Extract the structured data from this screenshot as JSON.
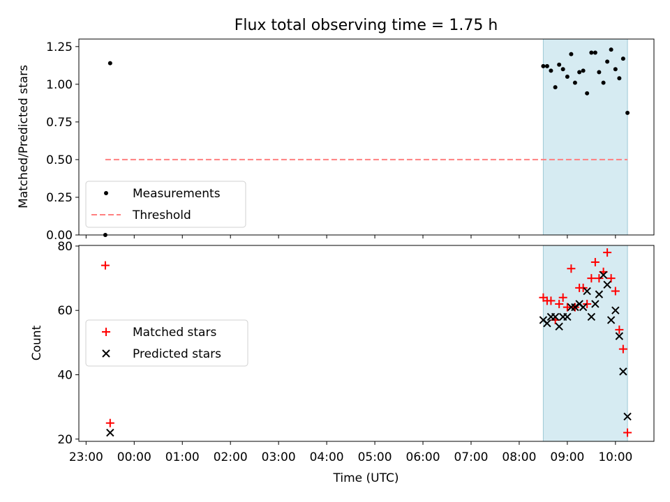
{
  "chart_data": [
    {
      "type": "scatter",
      "title": "Flux total observing time = 1.75 h",
      "xlabel": "",
      "ylabel": "Matched/Predicted stars",
      "xlim": [
        -0.15,
        11.8
      ],
      "ylim": [
        0,
        1.3
      ],
      "yticks": [
        0.0,
        0.25,
        0.5,
        0.75,
        1.0,
        1.25
      ],
      "ytick_labels": [
        "0.00",
        "0.25",
        "0.50",
        "0.75",
        "1.00",
        "1.25"
      ],
      "xticks": [
        0,
        1,
        2,
        3,
        4,
        5,
        6,
        7,
        8,
        9,
        10,
        11
      ],
      "shaded_region": [
        9.5,
        11.25
      ],
      "series": [
        {
          "name": "Measurements",
          "marker": "dot",
          "color": "#000000",
          "x": [
            0.4,
            0.5,
            9.5,
            9.58,
            9.66,
            9.75,
            9.83,
            9.91,
            10.0,
            10.08,
            10.16,
            10.25,
            10.33,
            10.41,
            10.5,
            10.58,
            10.66,
            10.75,
            10.83,
            10.91,
            11.0,
            11.08,
            11.16,
            11.25
          ],
          "y": [
            0.0,
            1.14,
            1.12,
            1.12,
            1.09,
            0.98,
            1.13,
            1.1,
            1.05,
            1.2,
            1.01,
            1.08,
            1.09,
            0.94,
            1.21,
            1.21,
            1.08,
            1.01,
            1.15,
            1.23,
            1.1,
            1.04,
            1.17,
            0.81
          ]
        },
        {
          "name": "Threshold",
          "style": "dashed",
          "color": "#ff7f7f",
          "x": [
            0.4,
            11.25
          ],
          "y": [
            0.5,
            0.5
          ]
        }
      ],
      "legend": "lower-left"
    },
    {
      "type": "scatter",
      "title": "",
      "xlabel": "Time (UTC)",
      "ylabel": "Count",
      "xlim": [
        -0.15,
        11.8
      ],
      "ylim": [
        19.3,
        80.2
      ],
      "yticks": [
        20,
        40,
        60,
        80
      ],
      "ytick_labels": [
        "20",
        "40",
        "60",
        "80"
      ],
      "xticks": [
        0,
        1,
        2,
        3,
        4,
        5,
        6,
        7,
        8,
        9,
        10,
        11
      ],
      "xtick_labels": [
        "23:00",
        "00:00",
        "01:00",
        "02:00",
        "03:00",
        "04:00",
        "05:00",
        "06:00",
        "07:00",
        "08:00",
        "09:00",
        "10:00"
      ],
      "shaded_region": [
        9.5,
        11.25
      ],
      "series": [
        {
          "name": "Matched stars",
          "marker": "plus",
          "color": "#ff0000",
          "x": [
            0.4,
            0.5,
            9.5,
            9.58,
            9.66,
            9.75,
            9.83,
            9.91,
            10.0,
            10.08,
            10.16,
            10.25,
            10.33,
            10.41,
            10.5,
            10.58,
            10.66,
            10.75,
            10.83,
            10.91,
            11.0,
            11.08,
            11.16,
            11.25
          ],
          "y": [
            74,
            25,
            64,
            63,
            63,
            57,
            62,
            64,
            61,
            73,
            61,
            67,
            67,
            62,
            70,
            75,
            70,
            72,
            78,
            70,
            66,
            54,
            48,
            22
          ]
        },
        {
          "name": "Predicted stars",
          "marker": "x",
          "color": "#000000",
          "x": [
            0.5,
            9.5,
            9.58,
            9.66,
            9.75,
            9.83,
            9.91,
            10.0,
            10.08,
            10.16,
            10.25,
            10.33,
            10.41,
            10.5,
            10.58,
            10.66,
            10.75,
            10.83,
            10.91,
            11.0,
            11.08,
            11.16,
            11.25
          ],
          "y": [
            22,
            57,
            56,
            58,
            58,
            55,
            58,
            58,
            61,
            61,
            62,
            61,
            66,
            58,
            62,
            65,
            71,
            68,
            57,
            60,
            52,
            41,
            27
          ]
        }
      ],
      "legend": "center-left"
    }
  ]
}
